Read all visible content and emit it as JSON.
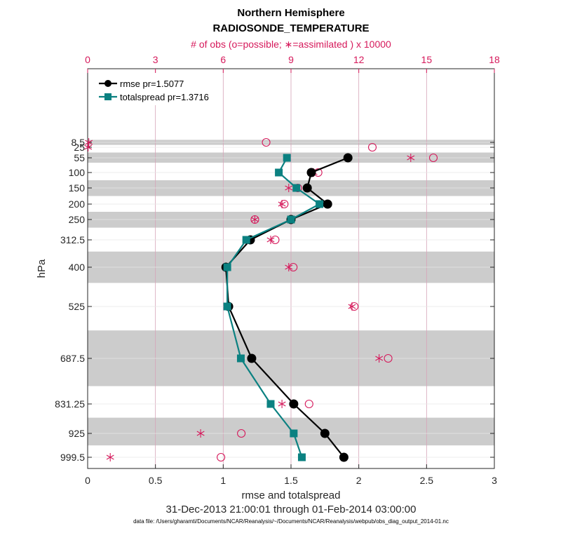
{
  "chart_data": {
    "type": "line",
    "title": "Northern Hemisphere",
    "subtitle": "RADIOSONDE_TEMPERATURE",
    "top_axis_label": "# of obs (o=possible; ∗=assimilated ) x 10000",
    "xlabel": "rmse and totalspread",
    "ylabel": "hPa",
    "date_range": "31-Dec-2013 21:00:01 through 01-Feb-2014 03:00:00",
    "footnote": "data file: /Users/gharamti/Documents/NCAR/Reanalysis/~/Documents/NCAR/Reanalysis/webpub/obs_diag_output_2014-01.nc",
    "xlim": [
      0,
      3
    ],
    "x_ticks": [
      "0",
      "0.5",
      "1",
      "1.5",
      "2",
      "2.5",
      "3"
    ],
    "top_xlim": [
      0,
      18
    ],
    "top_ticks": [
      "0",
      "3",
      "6",
      "9",
      "12",
      "15",
      "18"
    ],
    "levels": [
      8.5,
      25,
      55,
      100,
      150,
      200,
      250,
      312.5,
      400,
      525,
      687.5,
      831.25,
      925,
      999.5
    ],
    "level_labels": [
      "8.5",
      "25",
      "55",
      "100",
      "150",
      "200",
      "250",
      "312.5",
      "400",
      "525",
      "687.5",
      "831.25",
      "925",
      "999.5"
    ],
    "shaded_bands": [
      [
        0,
        17
      ],
      [
        40,
        70
      ],
      [
        125,
        175
      ],
      [
        225,
        275
      ],
      [
        350,
        450
      ],
      [
        600,
        775
      ],
      [
        875,
        962.5
      ]
    ],
    "series": [
      {
        "name": "rmse pr=1.5077",
        "color": "#000000",
        "marker": "circle",
        "levels": [
          55,
          100,
          150,
          200,
          250,
          312.5,
          400,
          525,
          687.5,
          831.25,
          925,
          999.5
        ],
        "values": [
          1.92,
          1.65,
          1.62,
          1.77,
          1.5,
          1.2,
          1.02,
          1.04,
          1.21,
          1.52,
          1.75,
          1.89
        ]
      },
      {
        "name": "totalspread pr=1.3716",
        "color": "#0b8181",
        "marker": "square",
        "levels": [
          55,
          100,
          150,
          200,
          250,
          312.5,
          400,
          525,
          687.5,
          831.25,
          925,
          999.5
        ],
        "values": [
          1.47,
          1.41,
          1.54,
          1.71,
          1.5,
          1.17,
          1.03,
          1.03,
          1.13,
          1.35,
          1.52,
          1.58
        ]
      }
    ],
    "obs_possible": {
      "levels": [
        8.5,
        25,
        55,
        100,
        150,
        200,
        250,
        312.5,
        400,
        525,
        687.5,
        831.25,
        925,
        999.5
      ],
      "values": [
        7.9,
        12.6,
        15.3,
        10.2,
        9.3,
        8.7,
        7.4,
        8.3,
        9.1,
        11.8,
        13.3,
        9.8,
        6.8,
        5.9
      ]
    },
    "obs_assimilated": {
      "levels": [
        8.5,
        25,
        55,
        100,
        150,
        200,
        250,
        312.5,
        400,
        525,
        687.5,
        831.25,
        925,
        999.5
      ],
      "values": [
        0.05,
        0.02,
        14.3,
        10.0,
        8.9,
        8.6,
        7.4,
        8.1,
        8.9,
        11.7,
        12.9,
        8.6,
        5.0,
        1.0
      ]
    },
    "grid": true,
    "legend_position": "top-left",
    "colors": {
      "rmse": "#000000",
      "spread": "#0b8181",
      "obs": "#d6195b",
      "band": "#cccccc",
      "grid": "#d6a3b8"
    }
  }
}
